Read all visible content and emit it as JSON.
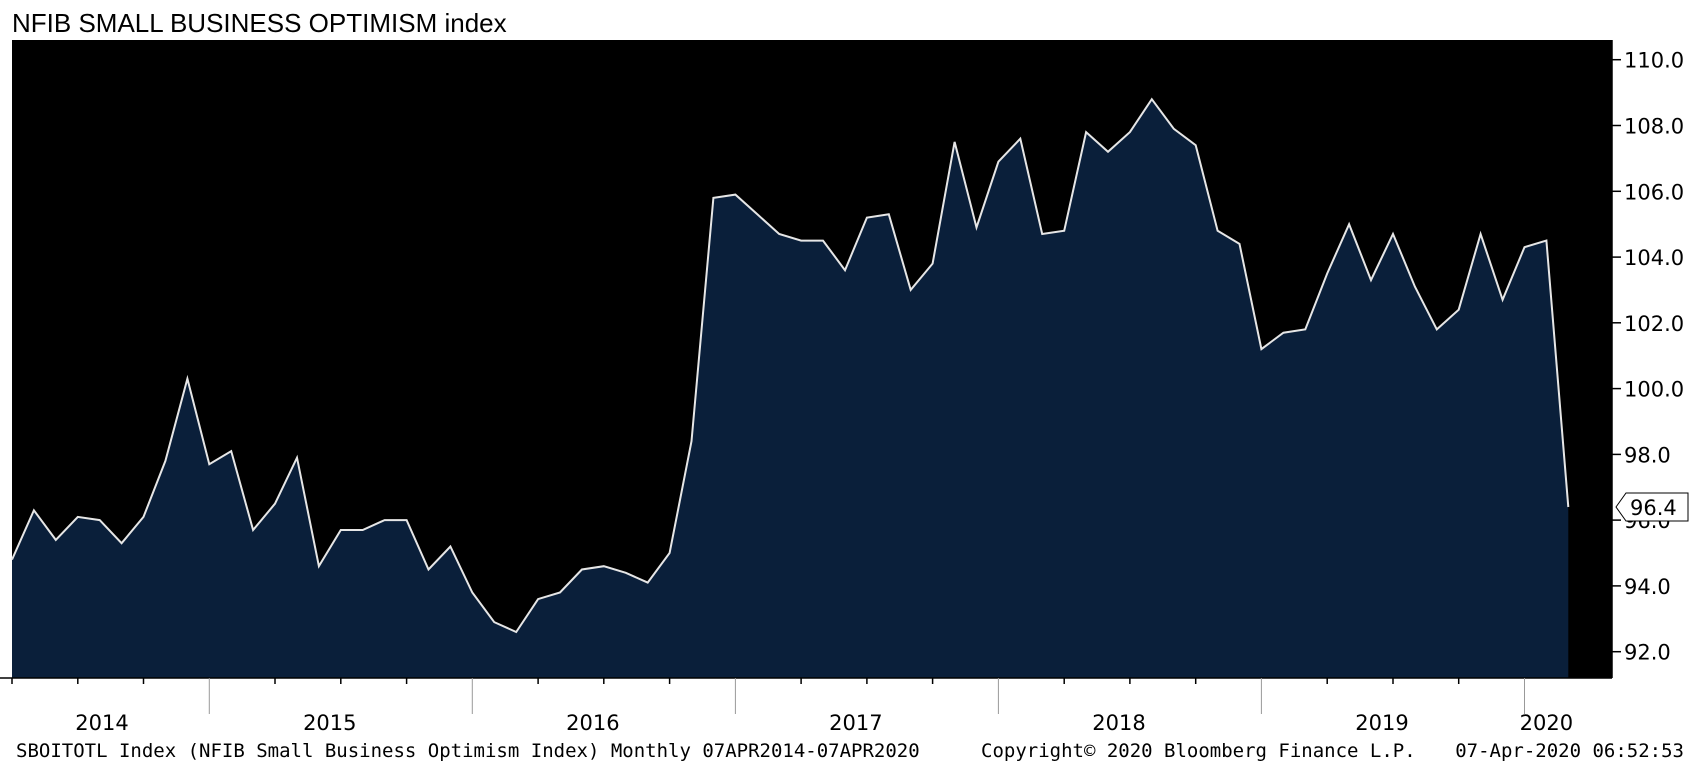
{
  "colors": {
    "plot_background": "#000000",
    "area_fill": "#0a1f3a",
    "line": "#e6e6e6",
    "page_background": "#ffffff"
  },
  "chart_data": {
    "type": "area",
    "title": "NFIB SMALL BUSINESS OPTIMISM index",
    "x_start": "2014-04",
    "x_end": "2020-03",
    "frequency": "monthly",
    "series": [
      {
        "values": [
          94.8,
          96.3,
          95.4,
          96.1,
          96.0,
          95.3,
          96.1,
          97.8,
          100.3,
          97.7,
          98.1,
          95.7,
          96.5,
          97.9,
          94.6,
          95.7,
          95.7,
          96.0,
          96.0,
          94.5,
          95.2,
          93.8,
          92.9,
          92.6,
          93.6,
          93.8,
          94.5,
          94.6,
          94.4,
          94.1,
          95.0,
          98.4,
          105.8,
          105.9,
          105.3,
          104.7,
          104.5,
          104.5,
          103.6,
          105.2,
          105.3,
          103.0,
          103.8,
          107.5,
          104.9,
          106.9,
          107.6,
          104.7,
          104.8,
          107.8,
          107.2,
          107.8,
          108.8,
          107.9,
          107.4,
          104.8,
          104.4,
          101.2,
          101.7,
          101.8,
          103.5,
          105.0,
          103.3,
          104.7,
          103.1,
          101.8,
          102.4,
          104.7,
          102.7,
          104.3,
          104.5,
          96.4
        ]
      }
    ],
    "ylim": [
      91.2,
      110.6
    ],
    "yticks": [
      "92.0",
      "94.0",
      "96.0",
      "98.0",
      "100.0",
      "102.0",
      "104.0",
      "106.0",
      "108.0",
      "110.0"
    ],
    "xticks": [
      "2014",
      "2015",
      "2016",
      "2017",
      "2018",
      "2019",
      "2020"
    ],
    "last_value_label": "96.4",
    "grid": false
  },
  "footer": {
    "left": "SBOITOTL Index (NFIB Small Business Optimism Index)  Monthly 07APR2014-07APR2020",
    "center": "Copyright© 2020 Bloomberg Finance L.P.",
    "right": "07-Apr-2020 06:52:53"
  }
}
